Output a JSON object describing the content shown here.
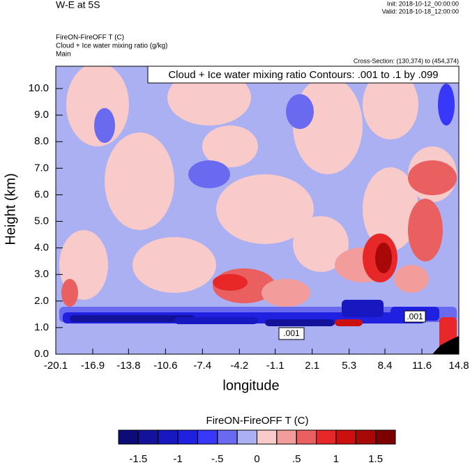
{
  "chart_data": {
    "type": "contour",
    "title": "W-E at 5S",
    "init": "Init: 2018-10-12_00:00:00",
    "valid": "Valid: 2018-10-18_12:00:00",
    "field_title": "FireON-FireOFF T   (C)",
    "contour_title": "Cloud + Ice water mixing ratio   (g/kg)",
    "domain": "Main",
    "cross_section": "Cross-Section: (130,374) to (454,374)",
    "contour_info": "Cloud + Ice water mixing ratio Contours: .001 to .1 by .099",
    "contour_labels": [
      ".001",
      ".001"
    ],
    "x_label": "longitude",
    "y_label": "Height (km)",
    "xlim": [
      -20.1,
      14.8
    ],
    "xticks": [
      -20.1,
      -16.9,
      -13.8,
      -10.6,
      -7.4,
      -4.2,
      -1.1,
      2.1,
      5.3,
      8.4,
      11.6,
      14.8
    ],
    "ylim": [
      0,
      10.84
    ],
    "yticks": [
      {
        "value": 0,
        "label": "0.0"
      },
      {
        "value": 1,
        "label": "1.0"
      },
      {
        "value": 2,
        "label": "2.0"
      },
      {
        "value": 3,
        "label": "3.0"
      },
      {
        "value": 4,
        "label": "4.0"
      },
      {
        "value": 5,
        "label": "5.0"
      },
      {
        "value": 6,
        "label": "6.0"
      },
      {
        "value": 7,
        "label": "7.0"
      },
      {
        "value": 8,
        "label": "8.0"
      },
      {
        "value": 9,
        "label": "9.0"
      },
      {
        "value": 10,
        "label": "10.0"
      }
    ],
    "colorbar": {
      "title": "FireON-FireOFF T  (C)",
      "levels": [
        -1.5,
        -1.25,
        -1,
        -0.75,
        -0.5,
        -0.25,
        0,
        0.25,
        0.5,
        0.75,
        1,
        1.25,
        1.5
      ],
      "colors": [
        "#0c0c78",
        "#12129a",
        "#1818c0",
        "#2020e0",
        "#3838fa",
        "#6a6af0",
        "#aab0f2",
        "#f8caca",
        "#f29c9c",
        "#ea6060",
        "#e82828",
        "#cc1010",
        "#a80808",
        "#7c0000"
      ],
      "labels": [
        {
          "value": -1.5,
          "label": "-1.5"
        },
        {
          "value": -1,
          "label": "-1"
        },
        {
          "value": -0.5,
          "label": "-.5"
        },
        {
          "value": 0,
          "label": "0"
        },
        {
          "value": 0.5,
          "label": ".5"
        },
        {
          "value": 1,
          "label": "1"
        },
        {
          "value": 1.5,
          "label": "1.5"
        }
      ]
    }
  }
}
